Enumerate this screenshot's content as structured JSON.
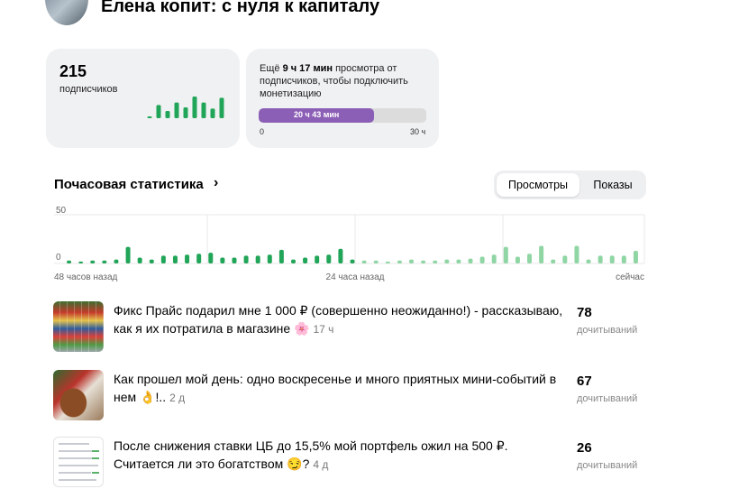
{
  "channel": {
    "title": "Елена копит: с нуля к капиталу"
  },
  "subscribers": {
    "count": "215",
    "label": "подписчиков",
    "trend_values": [
      1,
      11,
      6,
      13,
      9,
      18,
      13,
      8,
      17
    ]
  },
  "monetization": {
    "text_prefix": "Ещё ",
    "text_bold": "9 ч 17 мин",
    "text_suffix": " просмотра от подписчиков, чтобы подключить монетизацию",
    "progress_label": "20 ч 43 мин",
    "progress_fraction": 0.69,
    "min_label": "0",
    "max_label": "30 ч",
    "color": "#8c5fb6"
  },
  "hourly": {
    "title": "Почасовая статистика",
    "chevron_icon": "chevron-right-icon",
    "tabs": [
      {
        "label": "Просмотры",
        "active": true
      },
      {
        "label": "Показы",
        "active": false
      }
    ]
  },
  "chart_data": {
    "type": "bar",
    "y_tick_labels": [
      "50",
      "0"
    ],
    "ylim": [
      0,
      50
    ],
    "x_tick_labels": [
      "48 часов назад",
      "24 часа назад",
      "сейчас"
    ],
    "grid": true,
    "series": [
      {
        "color": "#21a558",
        "values": [
          3,
          2,
          3,
          3,
          4,
          17,
          6,
          4,
          8,
          8,
          9,
          10,
          11,
          6,
          6,
          8,
          8,
          9,
          14,
          4,
          6,
          8,
          9,
          15,
          4
        ]
      },
      {
        "color": "#8fd6a4",
        "values": [
          3,
          3,
          2,
          3,
          4,
          3,
          3,
          4,
          4,
          5,
          7,
          9,
          17,
          7,
          10,
          18,
          4,
          8,
          18,
          4,
          8,
          8,
          8,
          13
        ]
      }
    ]
  },
  "articles": [
    {
      "title": "Фикс Прайс подарил мне 1 000 ₽ (совершенно неожиданно!) - рассказываю, как я их потратила в магазине",
      "emoji": "🌸",
      "age": "17 ч",
      "reads": "78",
      "reads_label": "дочитываний",
      "thumbnail": "photo-store-shelves"
    },
    {
      "title": "Как прошел мой день: одно воскресенье и много приятных мини-событий в нем",
      "emoji": "👌",
      "title_tail": "!..",
      "age": "2 д",
      "reads": "67",
      "reads_label": "дочитываний",
      "thumbnail": "photo-dog-on-blanket"
    },
    {
      "title": "После снижения ставки ЦБ до 15,5% мой портфель ожил на 500 ₽. Считается ли это богатством",
      "emoji": "😏",
      "title_tail": "?",
      "age": "4 д",
      "reads": "26",
      "reads_label": "дочитываний",
      "thumbnail": "screenshot-portfolio"
    }
  ]
}
